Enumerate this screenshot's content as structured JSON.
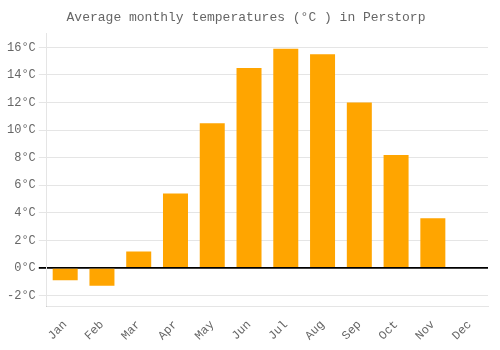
{
  "chart_data": {
    "type": "bar",
    "title": "Average monthly temperatures (°C ) in Perstorp",
    "categories": [
      "Jan",
      "Feb",
      "Mar",
      "Apr",
      "May",
      "Jun",
      "Jul",
      "Aug",
      "Sep",
      "Oct",
      "Nov",
      "Dec"
    ],
    "values": [
      -0.9,
      -1.3,
      1.2,
      5.4,
      10.5,
      14.5,
      15.9,
      15.5,
      12.0,
      8.2,
      3.6,
      0.0
    ],
    "color": "#FFA500",
    "ylim": [
      -2.8,
      17.0
    ],
    "yticks": [
      {
        "value": -2,
        "label": "-2°C"
      },
      {
        "value": 0,
        "label": "0°C"
      },
      {
        "value": 2,
        "label": "2°C"
      },
      {
        "value": 4,
        "label": "4°C"
      },
      {
        "value": 6,
        "label": "6°C"
      },
      {
        "value": 8,
        "label": "8°C"
      },
      {
        "value": 10,
        "label": "10°C"
      },
      {
        "value": 12,
        "label": "12°C"
      },
      {
        "value": 14,
        "label": "14°C"
      },
      {
        "value": 16,
        "label": "16°C"
      }
    ],
    "grid": true
  }
}
